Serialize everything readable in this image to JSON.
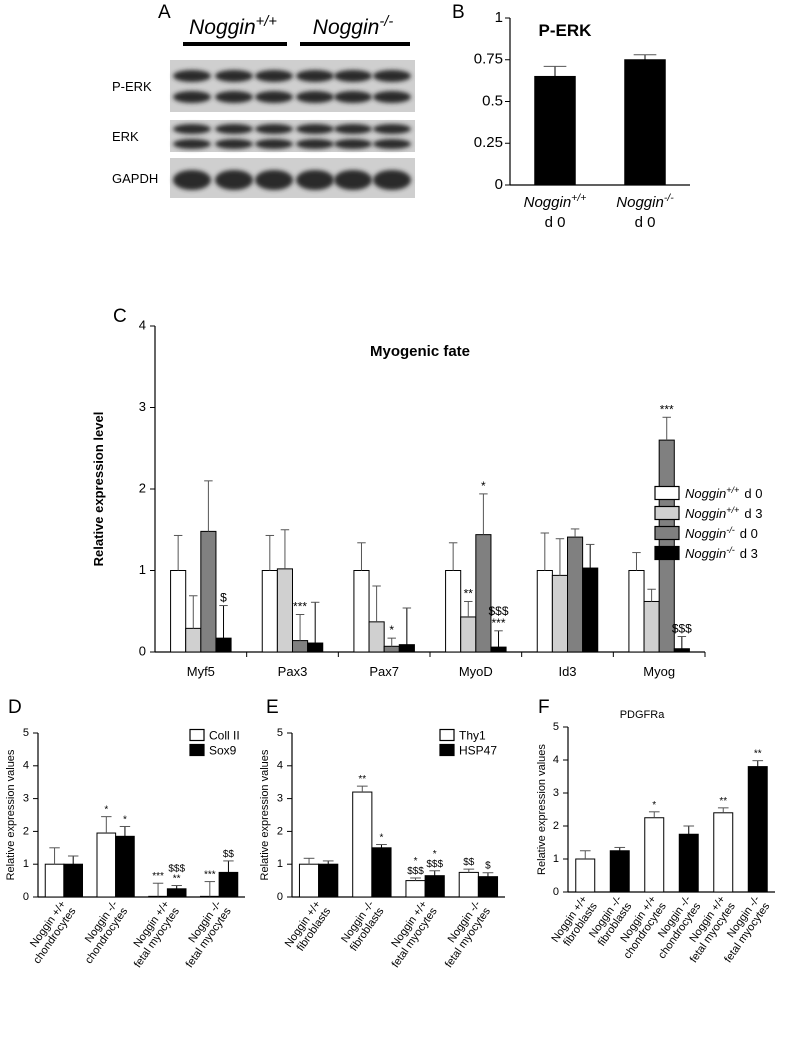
{
  "panel_labels": [
    "A",
    "B",
    "C",
    "D",
    "E",
    "F"
  ],
  "blot": {
    "groups": [
      {
        "name": "Noggin",
        "genotype": "+/+"
      },
      {
        "name": "Noggin",
        "genotype": "-/-"
      }
    ],
    "rows": [
      "P-ERK",
      "ERK",
      "GAPDH"
    ]
  },
  "chart_data": [
    {
      "type": "bar",
      "title": "P-ERK",
      "categories": [
        {
          "name": "Noggin",
          "genotype": "+/+",
          "day": "d 0"
        },
        {
          "name": "Noggin",
          "genotype": "-/-",
          "day": "d 0"
        }
      ],
      "values": [
        0.65,
        0.75
      ],
      "errors": [
        0.06,
        0.03
      ],
      "color": "#000000",
      "ylim": [
        0,
        1
      ],
      "yticks": [
        0,
        0.25,
        0.5,
        0.75,
        1
      ]
    },
    {
      "type": "bar",
      "title": "Myogenic fate",
      "ylabel": "Relative expression level",
      "categories": [
        "Myf5",
        "Pax3",
        "Pax7",
        "MyoD",
        "Id3",
        "Myog"
      ],
      "series": [
        {
          "name": "Noggin",
          "genotype": "+/+",
          "day": "d 0",
          "color": "#ffffff",
          "values": [
            1,
            1,
            1,
            1,
            1,
            1
          ],
          "errors": [
            0.43,
            0.43,
            0.34,
            0.34,
            0.46,
            0.22
          ],
          "annotations": [
            null,
            null,
            null,
            null,
            null,
            null
          ]
        },
        {
          "name": "Noggin",
          "genotype": "+/+",
          "day": "d 3",
          "color": "#d0d0d0",
          "values": [
            0.29,
            1.02,
            0.37,
            0.43,
            0.94,
            0.62
          ],
          "errors": [
            0.4,
            0.48,
            0.44,
            0.19,
            0.45,
            0.15
          ],
          "annotations": [
            null,
            null,
            null,
            [
              "**"
            ],
            null,
            null
          ]
        },
        {
          "name": "Noggin",
          "genotype": "-/-",
          "day": "d 0",
          "color": "#808080",
          "values": [
            1.48,
            0.14,
            0.07,
            1.44,
            1.41,
            2.6
          ],
          "errors": [
            0.62,
            0.32,
            0.1,
            0.5,
            0.1,
            0.28
          ],
          "annotations": [
            null,
            [
              "***"
            ],
            [
              "*"
            ],
            [
              "*"
            ],
            null,
            [
              "***"
            ]
          ]
        },
        {
          "name": "Noggin",
          "genotype": "-/-",
          "day": "d 3",
          "color": "#000000",
          "values": [
            0.17,
            0.11,
            0.09,
            0.06,
            1.03,
            0.04
          ],
          "errors": [
            0.4,
            0.5,
            0.45,
            0.2,
            0.29,
            0.15
          ],
          "annotations": [
            [
              "$"
            ],
            null,
            null,
            [
              "$$$",
              "***"
            ],
            null,
            [
              "$$$"
            ]
          ]
        }
      ],
      "ylim": [
        0,
        4
      ],
      "yticks": [
        0,
        1,
        2,
        3,
        4
      ],
      "legend": "right"
    },
    {
      "type": "bar",
      "ylabel": "Relative expression values",
      "categories": [
        [
          "Noggin +/+",
          "chondrocytes"
        ],
        [
          "Noggin -/-",
          "chondrocytes"
        ],
        [
          "Noggin +/+",
          "fetal myocytes"
        ],
        [
          "Noggin -/-",
          "fetal myocytes"
        ]
      ],
      "series": [
        {
          "name": "Coll II",
          "color": "#ffffff",
          "values": [
            1,
            1.95,
            0.02,
            0.02
          ],
          "errors": [
            0.5,
            0.5,
            0.4,
            0.45
          ],
          "annotations": [
            null,
            [
              "*"
            ],
            [
              "***"
            ],
            [
              "***"
            ]
          ]
        },
        {
          "name": "Sox9",
          "color": "#000000",
          "values": [
            1,
            1.85,
            0.25,
            0.75
          ],
          "errors": [
            0.25,
            0.3,
            0.1,
            0.35
          ],
          "annotations": [
            null,
            [
              "*"
            ],
            [
              "$$$",
              "**"
            ],
            [
              "$$"
            ]
          ]
        }
      ],
      "ylim": [
        0,
        5
      ],
      "yticks": [
        0,
        1,
        2,
        3,
        4,
        5
      ],
      "legend": "upper right"
    },
    {
      "type": "bar",
      "ylabel": "Relative expression values",
      "categories": [
        [
          "Noggin +/+",
          "fibroblasts"
        ],
        [
          "Noggin -/-",
          "fibroblasts"
        ],
        [
          "Noggin +/+",
          "fetal myocytes"
        ],
        [
          "Noggin -/-",
          "fetal myocytes"
        ]
      ],
      "series": [
        {
          "name": "Thy1",
          "color": "#ffffff",
          "values": [
            1,
            3.2,
            0.5,
            0.75
          ],
          "errors": [
            0.18,
            0.18,
            0.08,
            0.1
          ],
          "annotations": [
            null,
            [
              "**"
            ],
            [
              "*",
              "$$$"
            ],
            [
              "$$"
            ]
          ]
        },
        {
          "name": "HSP47",
          "color": "#000000",
          "values": [
            1,
            1.5,
            0.65,
            0.62
          ],
          "errors": [
            0.1,
            0.1,
            0.15,
            0.12
          ],
          "annotations": [
            null,
            [
              "*"
            ],
            [
              "*",
              "$$$"
            ],
            [
              "$"
            ]
          ]
        }
      ],
      "ylim": [
        0,
        5
      ],
      "yticks": [
        0,
        1,
        2,
        3,
        4,
        5
      ],
      "legend": "upper right"
    },
    {
      "type": "bar",
      "title": "PDGFRa",
      "ylabel": "Relative expression values",
      "categories": [
        [
          "Noggin +/+",
          "fibroblasts"
        ],
        [
          "Noggin -/-",
          "fibroblasts"
        ],
        [
          "Noggin +/+",
          "chondrocytes"
        ],
        [
          "Noggin -/-",
          "chondrocytes"
        ],
        [
          "Noggin +/+",
          "fetal myocytes"
        ],
        [
          "Noggin -/-",
          "fetal myocytes"
        ]
      ],
      "values": [
        1,
        1.25,
        2.25,
        1.75,
        2.4,
        3.8
      ],
      "errors": [
        0.25,
        0.1,
        0.18,
        0.25,
        0.15,
        0.18
      ],
      "annotations": [
        null,
        null,
        [
          "*"
        ],
        null,
        [
          "**"
        ],
        [
          "**"
        ]
      ],
      "colors": [
        "#ffffff",
        "#000000",
        "#ffffff",
        "#000000",
        "#ffffff",
        "#000000"
      ],
      "ylim": [
        0,
        5
      ],
      "yticks": [
        0,
        1,
        2,
        3,
        4,
        5
      ]
    }
  ]
}
